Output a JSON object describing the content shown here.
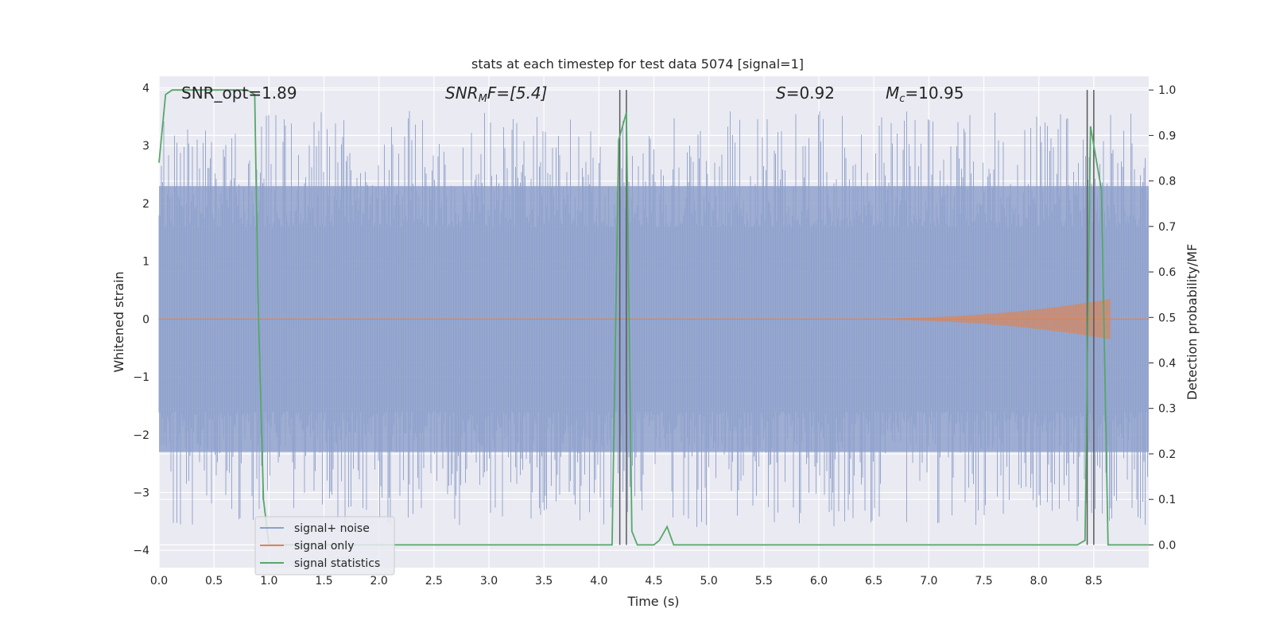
{
  "chart_data": {
    "type": "line",
    "title": "stats at each timestep for test data 5074 [signal=1]",
    "xlabel": "Time (s)",
    "ylabel_left": "Whitened strain",
    "ylabel_right": "Detection probability/MF",
    "xlim": [
      0.0,
      9.0
    ],
    "ylim_left": [
      -4.3,
      4.2
    ],
    "ylim_right": [
      -0.05,
      1.03
    ],
    "x_ticks": [
      "0.0",
      "0.5",
      "1.0",
      "1.5",
      "2.0",
      "2.5",
      "3.0",
      "3.5",
      "4.0",
      "4.5",
      "5.0",
      "5.5",
      "6.0",
      "6.5",
      "7.0",
      "7.5",
      "8.0",
      "8.5"
    ],
    "y_ticks_left": [
      "4",
      "3",
      "2",
      "1",
      "0",
      "−1",
      "−2",
      "−3",
      "−4"
    ],
    "y_ticks_right": [
      "1.0",
      "0.9",
      "0.8",
      "0.7",
      "0.6",
      "0.5",
      "0.4",
      "0.3",
      "0.2",
      "0.1",
      "0.0"
    ],
    "grid": true,
    "legend_position": "lower-left",
    "annotations": [
      "SNR_opt=1.89",
      "SNR",
      "M",
      "F=[5.4]",
      "S",
      "=0.92",
      "M",
      "c",
      "=10.95"
    ],
    "series": [
      {
        "name": "signal+ noise",
        "color": "#8da0cb",
        "axis": "left",
        "description_values": "noise band approx ±2.3, peaks to ±3.5"
      },
      {
        "name": "signal only",
        "color": "#dd8452",
        "axis": "left",
        "chirp_end_x": 8.65,
        "chirp_peak_amp": 0.35
      },
      {
        "name": "signal statistics",
        "color": "#55a868",
        "axis": "right",
        "x": [
          0.0,
          0.06,
          0.12,
          0.2,
          0.3,
          0.4,
          0.5,
          0.6,
          0.7,
          0.8,
          0.87,
          0.9,
          0.95,
          1.0,
          1.5,
          2.0,
          2.5,
          3.0,
          3.5,
          4.0,
          4.12,
          4.18,
          4.25,
          4.3,
          4.35,
          4.4,
          4.5,
          4.55,
          4.62,
          4.68,
          4.75,
          5.0,
          6.0,
          7.0,
          8.0,
          8.35,
          8.42,
          8.47,
          8.57,
          8.63,
          8.7,
          9.0
        ],
        "y": [
          0.84,
          0.99,
          1.0,
          1.0,
          1.0,
          1.0,
          1.0,
          1.0,
          1.0,
          1.0,
          0.99,
          0.55,
          0.1,
          0.0,
          0.0,
          0.0,
          0.0,
          0.0,
          0.0,
          0.0,
          0.0,
          0.89,
          0.95,
          0.03,
          0.0,
          0.0,
          0.0,
          0.01,
          0.04,
          0.0,
          0.0,
          0.0,
          0.0,
          0.0,
          0.0,
          0.0,
          0.01,
          0.92,
          0.78,
          0.0,
          0.0,
          0.0
        ]
      }
    ],
    "vertical_lines_x": [
      4.19,
      4.25,
      8.44,
      8.5
    ],
    "colors": {
      "background": "#eaeaf2",
      "grid": "#ffffff",
      "vline": "#595959"
    }
  }
}
